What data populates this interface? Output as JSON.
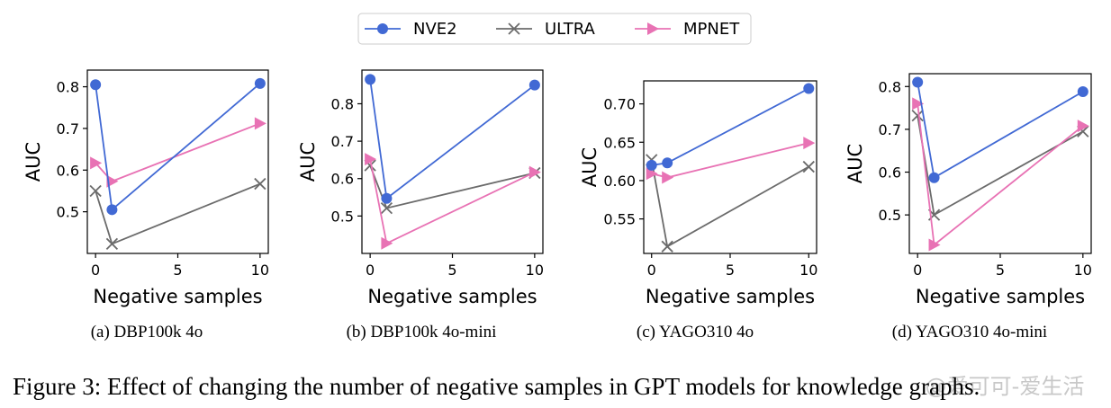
{
  "legend": {
    "series": [
      {
        "name": "NVE2",
        "color": "#4169d4",
        "marker": "circle"
      },
      {
        "name": "ULTRA",
        "color": "#6b6b6b",
        "marker": "x"
      },
      {
        "name": "MPNET",
        "color": "#e872b4",
        "marker": "triangle-right"
      }
    ]
  },
  "chart_data": [
    {
      "type": "line",
      "caption": "(a) DBP100k 4o",
      "xlabel": "Negative samples",
      "ylabel": "AUC",
      "x": [
        0,
        1,
        10
      ],
      "xlim": [
        -0.5,
        10.5
      ],
      "ylim": [
        0.4,
        0.84
      ],
      "xticks": [
        0,
        5,
        10
      ],
      "yticks": [
        0.5,
        0.6,
        0.7,
        0.8
      ],
      "tick_decimals": 1,
      "series": [
        {
          "name": "NVE2",
          "values": [
            0.805,
            0.505,
            0.808
          ]
        },
        {
          "name": "ULTRA",
          "values": [
            0.55,
            0.423,
            0.567
          ]
        },
        {
          "name": "MPNET",
          "values": [
            0.617,
            0.573,
            0.712
          ]
        }
      ]
    },
    {
      "type": "line",
      "caption": "(b) DBP100k 4o-mini",
      "xlabel": "Negative samples",
      "ylabel": "AUC",
      "x": [
        0,
        1,
        10
      ],
      "xlim": [
        -0.5,
        10.5
      ],
      "ylim": [
        0.4,
        0.89
      ],
      "xticks": [
        0,
        5,
        10
      ],
      "yticks": [
        0.5,
        0.6,
        0.7,
        0.8
      ],
      "tick_decimals": 1,
      "series": [
        {
          "name": "NVE2",
          "values": [
            0.865,
            0.547,
            0.85
          ]
        },
        {
          "name": "ULTRA",
          "values": [
            0.635,
            0.521,
            0.615
          ]
        },
        {
          "name": "MPNET",
          "values": [
            0.652,
            0.427,
            0.617
          ]
        }
      ]
    },
    {
      "type": "line",
      "caption": "(c) YAGO310 4o",
      "xlabel": "Negative samples",
      "ylabel": "AUC",
      "x": [
        0,
        1,
        10
      ],
      "xlim": [
        -0.5,
        10.5
      ],
      "ylim": [
        0.505,
        0.73
      ],
      "xticks": [
        0,
        5,
        10
      ],
      "yticks": [
        0.55,
        0.6,
        0.65,
        0.7
      ],
      "tick_decimals": 2,
      "series": [
        {
          "name": "NVE2",
          "values": [
            0.62,
            0.623,
            0.72
          ]
        },
        {
          "name": "ULTRA",
          "values": [
            0.627,
            0.514,
            0.618
          ]
        },
        {
          "name": "MPNET",
          "values": [
            0.609,
            0.604,
            0.649
          ]
        }
      ]
    },
    {
      "type": "line",
      "caption": "(d) YAGO310 4o-mini",
      "xlabel": "Negative samples",
      "ylabel": "AUC",
      "x": [
        0,
        1,
        10
      ],
      "xlim": [
        -0.5,
        10.5
      ],
      "ylim": [
        0.41,
        0.83
      ],
      "xticks": [
        0,
        5,
        10
      ],
      "yticks": [
        0.5,
        0.6,
        0.7,
        0.8
      ],
      "tick_decimals": 1,
      "series": [
        {
          "name": "NVE2",
          "values": [
            0.81,
            0.587,
            0.788
          ]
        },
        {
          "name": "ULTRA",
          "values": [
            0.732,
            0.5,
            0.695
          ]
        },
        {
          "name": "MPNET",
          "values": [
            0.76,
            0.43,
            0.708
          ]
        }
      ]
    }
  ],
  "figure_caption": "Figure 3: Effect of changing the number of negative samples in GPT models for knowledge graphs.",
  "watermark": "@爱可可-爱生活"
}
